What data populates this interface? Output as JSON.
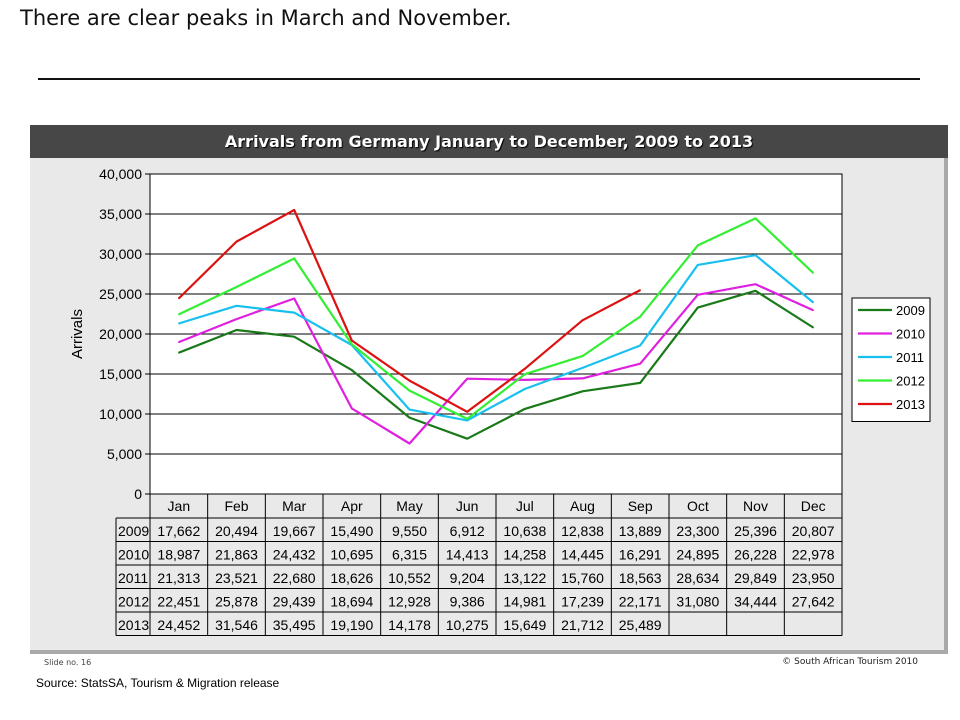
{
  "headline": "There are clear peaks in March and November.",
  "footer": {
    "slide_no": "Slide no. 16",
    "copyright": "© South African Tourism 2010",
    "source": "Source: StatsSA, Tourism & Migration release"
  },
  "chart_data": {
    "type": "line",
    "title": "Arrivals from Germany January to December, 2009 to 2013",
    "xlabel": "",
    "ylabel": "Arrivals",
    "ylim": [
      0,
      40000
    ],
    "y_ticks": [
      "0",
      "5,000",
      "10,000",
      "15,000",
      "20,000",
      "25,000",
      "30,000",
      "35,000",
      "40,000"
    ],
    "y_tick_values": [
      0,
      5000,
      10000,
      15000,
      20000,
      25000,
      30000,
      35000,
      40000
    ],
    "grid": "horizontal",
    "legend_position": "right",
    "categories": [
      "Jan",
      "Feb",
      "Mar",
      "Apr",
      "May",
      "Jun",
      "Jul",
      "Aug",
      "Sep",
      "Oct",
      "Nov",
      "Dec"
    ],
    "series": [
      {
        "name": "2009",
        "color": "#1a7a1a",
        "values": [
          17662,
          20494,
          19667,
          15490,
          9550,
          6912,
          10638,
          12838,
          13889,
          23300,
          25396,
          20807
        ],
        "labels": [
          "17,662",
          "20,494",
          "19,667",
          "15,490",
          "9,550",
          "6,912",
          "10,638",
          "12,838",
          "13,889",
          "23,300",
          "25,396",
          "20,807"
        ]
      },
      {
        "name": "2010",
        "color": "#e020e0",
        "values": [
          18987,
          21863,
          24432,
          10695,
          6315,
          14413,
          14258,
          14445,
          16291,
          24895,
          26228,
          22978
        ],
        "labels": [
          "18,987",
          "21,863",
          "24,432",
          "10,695",
          "6,315",
          "14,413",
          "14,258",
          "14,445",
          "16,291",
          "24,895",
          "26,228",
          "22,978"
        ]
      },
      {
        "name": "2011",
        "color": "#18c0f0",
        "values": [
          21313,
          23521,
          22680,
          18626,
          10552,
          9204,
          13122,
          15760,
          18563,
          28634,
          29849,
          23950
        ],
        "labels": [
          "21,313",
          "23,521",
          "22,680",
          "18,626",
          "10,552",
          "9,204",
          "13,122",
          "15,760",
          "18,563",
          "28,634",
          "29,849",
          "23,950"
        ]
      },
      {
        "name": "2012",
        "color": "#33ee33",
        "values": [
          22451,
          25878,
          29439,
          18694,
          12928,
          9386,
          14981,
          17239,
          22171,
          31080,
          34444,
          27642
        ],
        "labels": [
          "22,451",
          "25,878",
          "29,439",
          "18,694",
          "12,928",
          "9,386",
          "14,981",
          "17,239",
          "22,171",
          "31,080",
          "34,444",
          "27,642"
        ]
      },
      {
        "name": "2013",
        "color": "#dd1111",
        "values": [
          24452,
          31546,
          35495,
          19190,
          14178,
          10275,
          15649,
          21712,
          25489,
          null,
          null,
          null
        ],
        "labels": [
          "24,452",
          "31,546",
          "35,495",
          "19,190",
          "14,178",
          "10,275",
          "15,649",
          "21,712",
          "25,489",
          "",
          "",
          ""
        ]
      }
    ]
  }
}
